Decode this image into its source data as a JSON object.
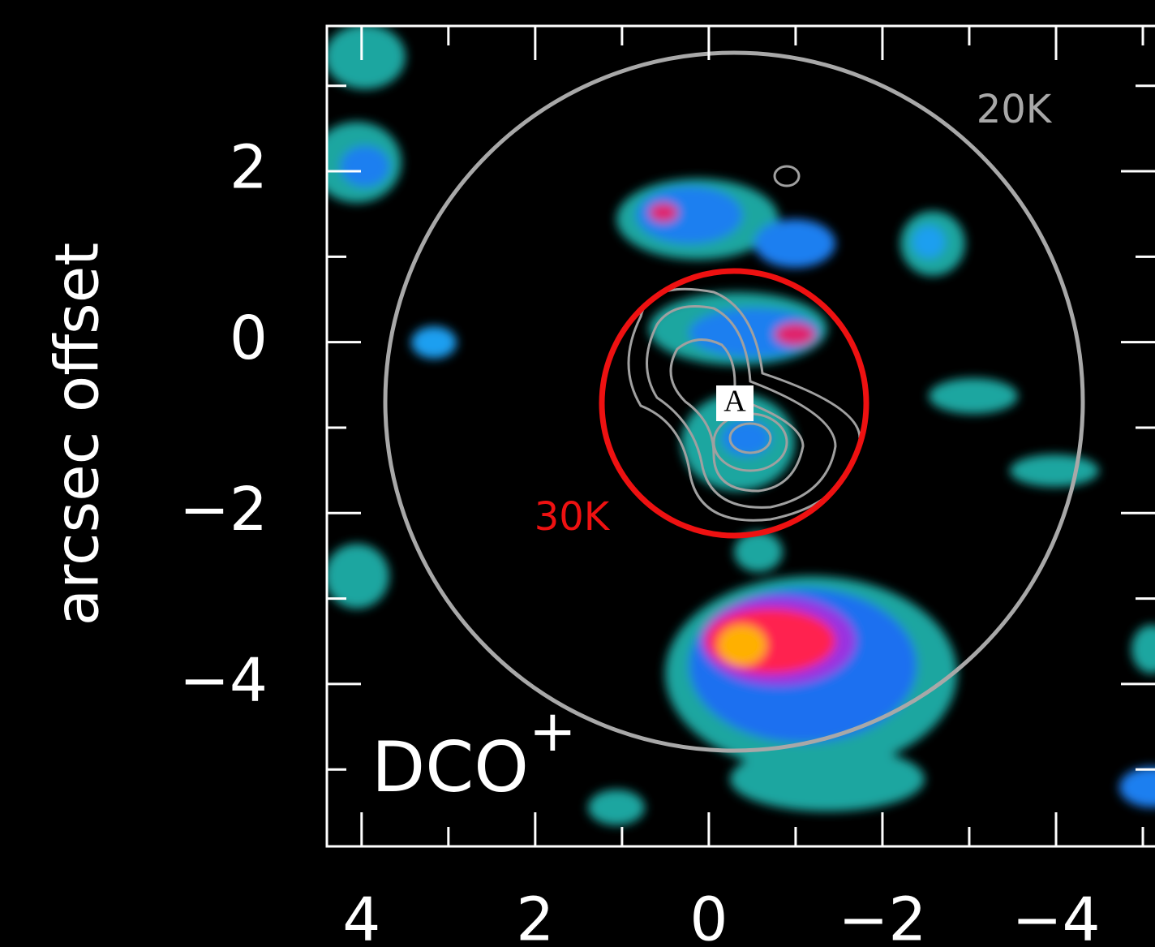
{
  "chart_data": {
    "type": "map",
    "ylabel": "arcsec offset",
    "xlim": [
      4.4,
      -5.14
    ],
    "ylim": [
      -5.9,
      3.7
    ],
    "xticks": [
      4,
      2,
      0,
      {
        "value": -2,
        "label": "−2"
      },
      {
        "value": -4,
        "label": "−4"
      }
    ],
    "yticks": [
      2,
      0,
      {
        "value": -2,
        "label": "−2"
      },
      {
        "value": -4,
        "label": "−4"
      }
    ],
    "xminorticks": [
      3,
      1,
      -1,
      -3,
      -5
    ],
    "yminorticks": [
      3,
      1,
      -1,
      -3,
      -5
    ],
    "frame_color": "#ffffff",
    "annotations": {
      "outer": "20K",
      "inner": "30K",
      "source": "A"
    },
    "molecule": {
      "text": "DCO",
      "superscript": "+"
    }
  }
}
